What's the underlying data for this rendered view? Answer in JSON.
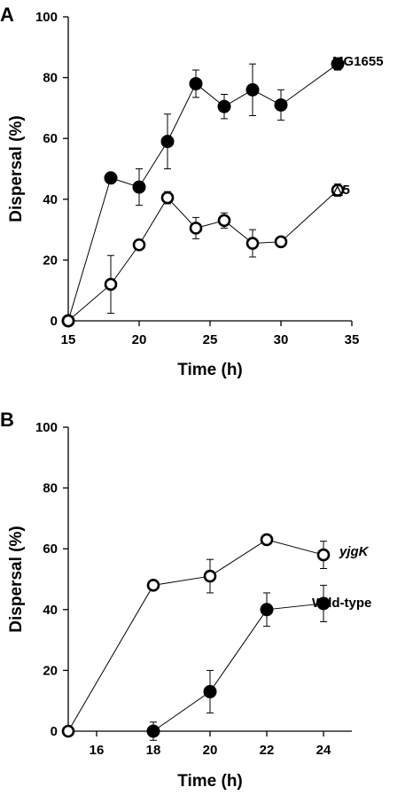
{
  "chart_data": [
    {
      "panel_label": "A",
      "type": "line",
      "xlabel": "Time (h)",
      "ylabel": "Dispersal (%)",
      "xlim": [
        15,
        35
      ],
      "ylim": [
        0,
        100
      ],
      "xticks": [
        15,
        20,
        25,
        30,
        35
      ],
      "yticks": [
        0,
        20,
        40,
        60,
        80,
        100
      ],
      "series": [
        {
          "name": "MG1655",
          "marker": "filled-circle",
          "x": [
            15,
            18,
            20,
            22,
            24,
            26,
            28,
            30,
            34
          ],
          "y": [
            0,
            47,
            44,
            59,
            78,
            70.5,
            76,
            71,
            84.5
          ],
          "error": [
            0,
            0,
            6,
            9,
            4.5,
            4,
            8.5,
            5,
            2
          ]
        },
        {
          "name": "△5",
          "marker": "open-circle",
          "x": [
            15,
            18,
            20,
            22,
            24,
            26,
            28,
            30,
            34
          ],
          "y": [
            0,
            12,
            25,
            40.5,
            30.5,
            33,
            25.5,
            26,
            43
          ],
          "error": [
            0,
            9.5,
            1,
            2,
            3.5,
            2.5,
            4.5,
            0,
            2
          ]
        }
      ]
    },
    {
      "panel_label": "B",
      "type": "line",
      "xlabel": "Time (h)",
      "ylabel": "Dispersal (%)",
      "xlim": [
        15,
        25
      ],
      "ylim": [
        0,
        100
      ],
      "xticks": [
        16,
        18,
        20,
        22,
        24
      ],
      "yticks": [
        0,
        20,
        40,
        60,
        80,
        100
      ],
      "series": [
        {
          "name": "yjgK",
          "marker": "open-circle",
          "x": [
            15,
            18,
            20,
            22,
            24
          ],
          "y": [
            0,
            48,
            51,
            63,
            58
          ],
          "error": [
            0,
            1.5,
            5.5,
            0,
            4.5
          ]
        },
        {
          "name": "Wild-type",
          "marker": "filled-circle",
          "x": [
            18,
            20,
            22,
            24
          ],
          "y": [
            0,
            13,
            40,
            42
          ],
          "error": [
            3,
            7,
            5.5,
            6
          ]
        }
      ]
    }
  ]
}
